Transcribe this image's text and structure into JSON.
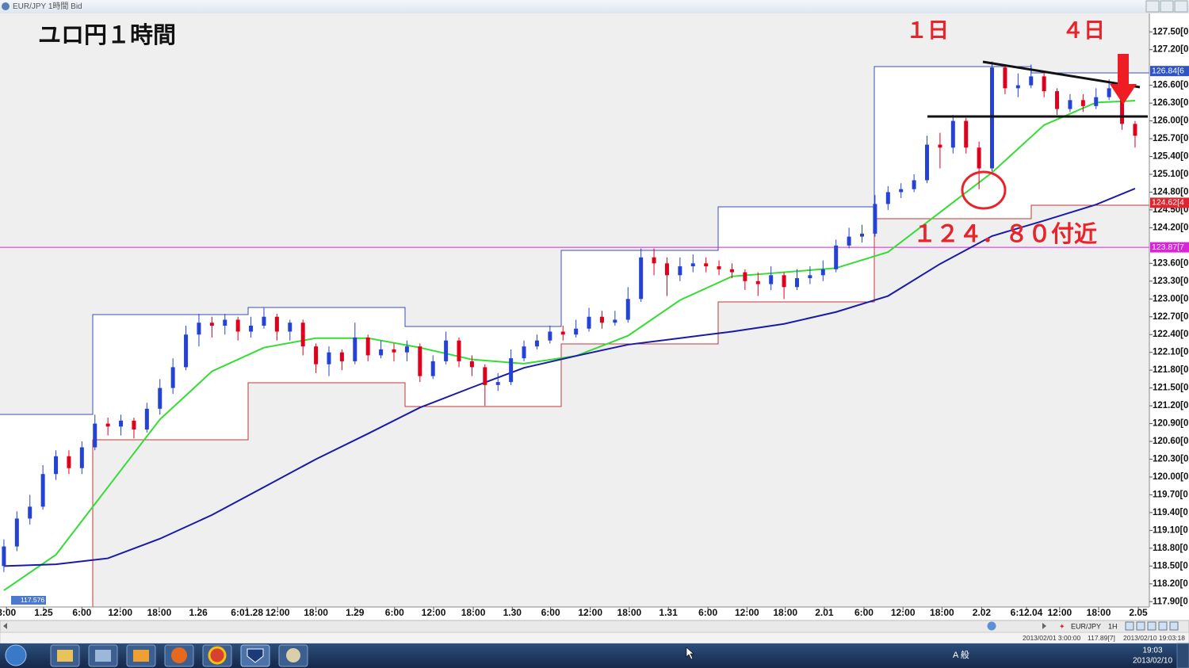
{
  "window": {
    "title": "EUR/JPY 1時間 Bid"
  },
  "chart_data": {
    "type": "candlestick",
    "title": "ユロ円１時間",
    "annotations": [
      "１日",
      "４日",
      "１２４．８０付近"
    ],
    "up_color": "#2442d6",
    "down_color": "#e0001b",
    "candles": [
      [
        118.5,
        118.95,
        118.4,
        118.83
      ],
      [
        118.83,
        119.42,
        118.75,
        119.3
      ],
      [
        119.3,
        119.7,
        119.2,
        119.5
      ],
      [
        119.5,
        120.2,
        119.45,
        120.05
      ],
      [
        120.05,
        120.45,
        119.95,
        120.35
      ],
      [
        120.35,
        120.45,
        120.05,
        120.15
      ],
      [
        120.15,
        120.6,
        120.05,
        120.5
      ],
      [
        120.5,
        121.05,
        120.45,
        120.9
      ],
      [
        120.9,
        121.0,
        120.7,
        120.85
      ],
      [
        120.85,
        121.05,
        120.7,
        120.95
      ],
      [
        120.95,
        121.0,
        120.65,
        120.8
      ],
      [
        120.8,
        121.25,
        120.75,
        121.15
      ],
      [
        121.15,
        121.65,
        121.05,
        121.5
      ],
      [
        121.5,
        122.0,
        121.4,
        121.85
      ],
      [
        121.85,
        122.55,
        121.8,
        122.4
      ],
      [
        122.4,
        122.75,
        122.2,
        122.6
      ],
      [
        122.6,
        122.7,
        122.35,
        122.55
      ],
      [
        122.55,
        122.75,
        122.4,
        122.65
      ],
      [
        122.65,
        122.7,
        122.3,
        122.45
      ],
      [
        122.45,
        122.7,
        122.35,
        122.55
      ],
      [
        122.55,
        122.85,
        122.5,
        122.7
      ],
      [
        122.7,
        122.75,
        122.3,
        122.45
      ],
      [
        122.45,
        122.65,
        122.3,
        122.6
      ],
      [
        122.6,
        122.65,
        122.05,
        122.2
      ],
      [
        122.2,
        122.25,
        121.75,
        121.9
      ],
      [
        121.9,
        122.2,
        121.7,
        122.1
      ],
      [
        122.1,
        122.15,
        121.8,
        121.95
      ],
      [
        121.95,
        122.6,
        121.9,
        122.35
      ],
      [
        122.35,
        122.4,
        121.95,
        122.05
      ],
      [
        122.05,
        122.3,
        122.0,
        122.15
      ],
      [
        122.15,
        122.25,
        121.95,
        122.1
      ],
      [
        122.1,
        122.3,
        121.95,
        122.2
      ],
      [
        122.2,
        122.25,
        121.6,
        121.7
      ],
      [
        121.7,
        122.05,
        121.65,
        121.95
      ],
      [
        121.95,
        122.45,
        121.9,
        122.3
      ],
      [
        122.3,
        122.35,
        121.85,
        121.95
      ],
      [
        121.95,
        122.05,
        121.7,
        121.85
      ],
      [
        121.85,
        121.9,
        121.2,
        121.55
      ],
      [
        121.55,
        121.75,
        121.45,
        121.6
      ],
      [
        121.6,
        122.15,
        121.55,
        122.0
      ],
      [
        122.0,
        122.3,
        121.95,
        122.2
      ],
      [
        122.2,
        122.4,
        122.15,
        122.3
      ],
      [
        122.3,
        122.55,
        122.25,
        122.45
      ],
      [
        122.45,
        122.55,
        122.3,
        122.4
      ],
      [
        122.4,
        122.65,
        122.35,
        122.5
      ],
      [
        122.5,
        122.85,
        122.45,
        122.7
      ],
      [
        122.7,
        122.8,
        122.5,
        122.6
      ],
      [
        122.6,
        122.8,
        122.55,
        122.65
      ],
      [
        122.65,
        123.2,
        122.6,
        123.0
      ],
      [
        123.0,
        123.85,
        122.95,
        123.7
      ],
      [
        123.7,
        123.85,
        123.4,
        123.6
      ],
      [
        123.6,
        123.7,
        123.05,
        123.4
      ],
      [
        123.4,
        123.7,
        123.3,
        123.55
      ],
      [
        123.55,
        123.75,
        123.45,
        123.6
      ],
      [
        123.6,
        123.7,
        123.45,
        123.55
      ],
      [
        123.55,
        123.65,
        123.4,
        123.5
      ],
      [
        123.5,
        123.6,
        123.35,
        123.45
      ],
      [
        123.45,
        123.5,
        123.15,
        123.3
      ],
      [
        123.3,
        123.45,
        123.05,
        123.25
      ],
      [
        123.25,
        123.55,
        123.15,
        123.4
      ],
      [
        123.4,
        123.45,
        123.0,
        123.2
      ],
      [
        123.2,
        123.5,
        123.15,
        123.35
      ],
      [
        123.35,
        123.55,
        123.25,
        123.4
      ],
      [
        123.4,
        123.65,
        123.3,
        123.5
      ],
      [
        123.5,
        124.0,
        123.45,
        123.9
      ],
      [
        123.9,
        124.2,
        123.85,
        124.05
      ],
      [
        124.05,
        124.25,
        123.95,
        124.1
      ],
      [
        124.1,
        124.75,
        124.05,
        124.6
      ],
      [
        124.6,
        124.9,
        124.5,
        124.8
      ],
      [
        124.8,
        124.95,
        124.7,
        124.85
      ],
      [
        124.85,
        125.1,
        124.8,
        125.0
      ],
      [
        125.0,
        125.75,
        124.95,
        125.6
      ],
      [
        125.6,
        125.8,
        125.2,
        125.55
      ],
      [
        125.55,
        126.1,
        125.45,
        126.0
      ],
      [
        126.0,
        126.05,
        125.45,
        125.55
      ],
      [
        125.55,
        125.65,
        124.85,
        125.2
      ],
      [
        125.2,
        127.0,
        125.15,
        126.9
      ],
      [
        126.9,
        126.95,
        126.45,
        126.55
      ],
      [
        126.55,
        126.8,
        126.4,
        126.6
      ],
      [
        126.6,
        126.95,
        126.55,
        126.75
      ],
      [
        126.75,
        126.8,
        126.4,
        126.5
      ],
      [
        126.5,
        126.55,
        126.1,
        126.2
      ],
      [
        126.2,
        126.45,
        126.15,
        126.35
      ],
      [
        126.35,
        126.45,
        126.15,
        126.25
      ],
      [
        126.25,
        126.55,
        126.2,
        126.4
      ],
      [
        126.4,
        126.7,
        126.35,
        126.55
      ],
      [
        126.55,
        126.6,
        125.85,
        125.95
      ],
      [
        125.95,
        126.0,
        125.55,
        125.75
      ]
    ],
    "moving_averages": {
      "x": [
        0,
        4,
        8,
        12,
        16,
        20,
        24,
        28,
        32,
        36,
        40,
        44,
        48,
        52,
        56,
        60,
        64,
        68,
        72,
        76,
        80,
        84,
        87
      ],
      "lines": [
        {
          "color": "#33dd33",
          "values": [
            118.09,
            118.69,
            119.83,
            120.97,
            121.78,
            122.18,
            122.34,
            122.34,
            122.18,
            121.98,
            121.91,
            122.04,
            122.38,
            122.98,
            123.38,
            123.45,
            123.52,
            123.79,
            124.46,
            125.13,
            125.93,
            126.31,
            126.34
          ]
        },
        {
          "color": "#1a1aa8",
          "values": [
            118.5,
            118.53,
            118.63,
            118.96,
            119.36,
            119.83,
            120.3,
            120.73,
            121.17,
            121.51,
            121.84,
            122.04,
            122.23,
            122.34,
            122.45,
            122.58,
            122.78,
            123.05,
            123.59,
            124.06,
            124.32,
            124.59,
            124.86
          ]
        }
      ]
    },
    "xlim": [
      -0.3,
      88.1
    ],
    "xticks": [
      {
        "value": 0.2,
        "label": "3:00"
      },
      {
        "value": 3.05,
        "label": "1.25"
      },
      {
        "value": 6,
        "label": "6:00"
      },
      {
        "value": 8.95,
        "label": "12:00"
      },
      {
        "value": 11.95,
        "label": "18:00"
      },
      {
        "value": 14.95,
        "label": "1.26"
      },
      {
        "value": 18.7,
        "label": "6:01.28"
      },
      {
        "value": 21.05,
        "label": "12:00"
      },
      {
        "value": 24,
        "label": "18:00"
      },
      {
        "value": 27,
        "label": "1.29"
      },
      {
        "value": 30.05,
        "label": "6:00"
      },
      {
        "value": 33.05,
        "label": "12:00"
      },
      {
        "value": 36.1,
        "label": "18:00"
      },
      {
        "value": 39.1,
        "label": "1.30"
      },
      {
        "value": 42.05,
        "label": "6:00"
      },
      {
        "value": 45.1,
        "label": "12:00"
      },
      {
        "value": 48.1,
        "label": "18:00"
      },
      {
        "value": 51.1,
        "label": "1.31"
      },
      {
        "value": 54.15,
        "label": "6:00"
      },
      {
        "value": 57.15,
        "label": "12:00"
      },
      {
        "value": 60.1,
        "label": "18:00"
      },
      {
        "value": 63.1,
        "label": "2.01"
      },
      {
        "value": 66.15,
        "label": "6:00"
      },
      {
        "value": 69.15,
        "label": "12:00"
      },
      {
        "value": 72.15,
        "label": "18:00"
      },
      {
        "value": 75.2,
        "label": "2.02"
      },
      {
        "value": 78.65,
        "label": "6:12.04"
      },
      {
        "value": 81.2,
        "label": "12:00"
      },
      {
        "value": 84.2,
        "label": "18:00"
      },
      {
        "value": 87.25,
        "label": "2.05"
      }
    ],
    "ylim": [
      117.81,
      127.81
    ],
    "yticks": [
      {
        "value": 127.5,
        "label": "127.50[0"
      },
      {
        "value": 127.2,
        "label": "127.20[0"
      },
      {
        "value": 126.6,
        "label": "126.60[0"
      },
      {
        "value": 126.3,
        "label": "126.30[0"
      },
      {
        "value": 126.0,
        "label": "126.00[0"
      },
      {
        "value": 125.7,
        "label": "125.70[0"
      },
      {
        "value": 125.4,
        "label": "125.40[0"
      },
      {
        "value": 125.1,
        "label": "125.10[0"
      },
      {
        "value": 124.8,
        "label": "124.80[0"
      },
      {
        "value": 124.5,
        "label": "124.50[0"
      },
      {
        "value": 124.2,
        "label": "124.20[0"
      },
      {
        "value": 123.6,
        "label": "123.60[0"
      },
      {
        "value": 123.3,
        "label": "123.30[0"
      },
      {
        "value": 123.0,
        "label": "123.00[0"
      },
      {
        "value": 122.7,
        "label": "122.70[0"
      },
      {
        "value": 122.4,
        "label": "122.40[0"
      },
      {
        "value": 122.1,
        "label": "122.10[0"
      },
      {
        "value": 121.8,
        "label": "121.80[0"
      },
      {
        "value": 121.5,
        "label": "121.50[0"
      },
      {
        "value": 121.2,
        "label": "121.20[0"
      },
      {
        "value": 120.9,
        "label": "120.90[0"
      },
      {
        "value": 120.6,
        "label": "120.60[0"
      },
      {
        "value": 120.3,
        "label": "120.30[0"
      },
      {
        "value": 120.0,
        "label": "120.00[0"
      },
      {
        "value": 119.7,
        "label": "119.70[0"
      },
      {
        "value": 119.4,
        "label": "119.40[0"
      },
      {
        "value": 119.1,
        "label": "119.10[0"
      },
      {
        "value": 118.8,
        "label": "118.80[0"
      },
      {
        "value": 118.5,
        "label": "118.50[0"
      },
      {
        "value": 118.2,
        "label": "118.20[0"
      },
      {
        "value": 117.9,
        "label": "117.90[0"
      }
    ],
    "price_markers": [
      {
        "value": 126.84,
        "label": "126.84[6",
        "color": "#2f54c8"
      },
      {
        "value": 124.62,
        "label": "124.62[4",
        "color": "#e0242e"
      },
      {
        "value": 123.87,
        "label": "123.87[7",
        "color": "#dd22dd"
      }
    ],
    "low_marker": 117.576
  },
  "status_bar": {
    "symbol": "EUR/JPY",
    "timeframe": "1H",
    "start": "2013/02/01 3:00:00",
    "price": "117.89[7]",
    "end": "2013/02/10 19:03:18"
  },
  "taskbar": {
    "ime": "A 般",
    "time": "19:03",
    "date": "2013/02/10"
  }
}
